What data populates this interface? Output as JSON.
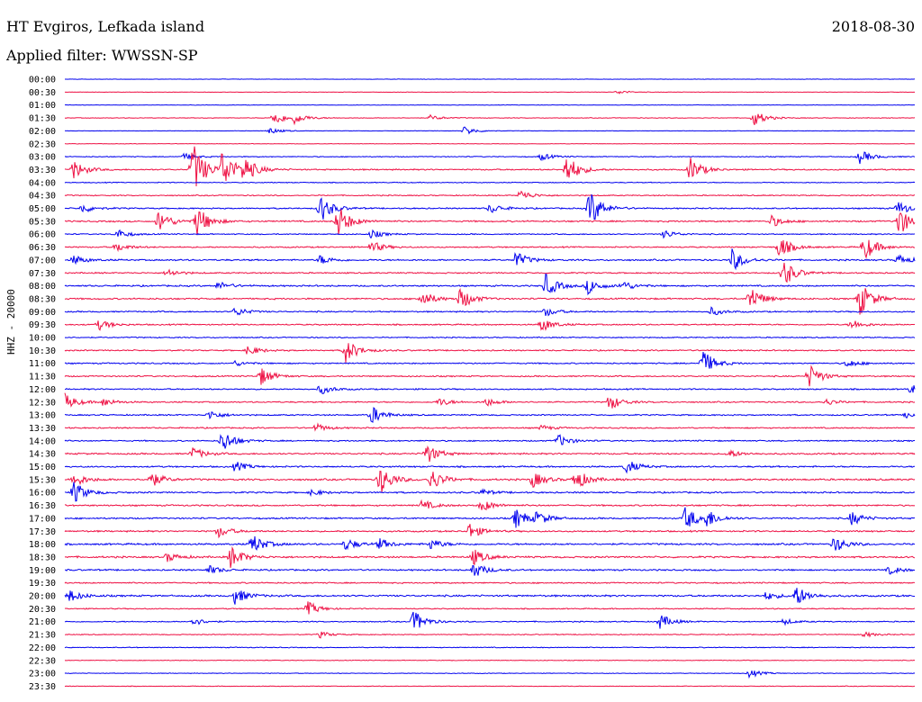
{
  "header": {
    "station": "HT Evgiros, Lefkada island",
    "date": "2018-08-30",
    "filter": "Applied filter: WWSSN-SP"
  },
  "axis": {
    "ylabel": "HHZ - 20000"
  },
  "colors": {
    "odd_trace": "#0000ee",
    "even_trace": "#ee1144",
    "background": "#ffffff"
  },
  "chart_data": {
    "type": "line",
    "title": "HT Evgiros, Lefkada island",
    "subtitle": "Applied filter: WWSSN-SP",
    "ylabel": "HHZ - 20000",
    "row_labels": [
      "00:00",
      "00:30",
      "01:00",
      "01:30",
      "02:00",
      "02:30",
      "03:00",
      "03:30",
      "04:00",
      "04:30",
      "05:00",
      "05:30",
      "06:00",
      "06:30",
      "07:00",
      "07:30",
      "08:00",
      "08:30",
      "09:00",
      "09:30",
      "10:00",
      "10:30",
      "11:00",
      "11:30",
      "12:00",
      "12:30",
      "13:00",
      "13:30",
      "14:00",
      "14:30",
      "15:00",
      "15:30",
      "16:00",
      "16:30",
      "17:00",
      "17:30",
      "18:00",
      "18:30",
      "19:00",
      "19:30",
      "20:00",
      "20:30",
      "21:00",
      "21:30",
      "22:00",
      "22:30",
      "23:00",
      "23:30"
    ],
    "row_colors": [
      "blue",
      "red"
    ],
    "noise_level": [
      0.2,
      0.2,
      0.2,
      0.3,
      0.2,
      0.2,
      0.4,
      0.6,
      0.4,
      0.5,
      0.6,
      0.7,
      0.5,
      0.6,
      0.7,
      0.6,
      0.7,
      0.7,
      0.6,
      0.6,
      0.5,
      0.6,
      0.6,
      0.6,
      0.6,
      0.6,
      0.6,
      0.6,
      0.6,
      0.7,
      0.7,
      0.8,
      0.7,
      0.7,
      0.7,
      0.7,
      0.8,
      0.8,
      0.7,
      0.6,
      0.8,
      0.5,
      0.5,
      0.4,
      0.4,
      0.3,
      0.3,
      0.3
    ],
    "events": [
      {
        "row": 1,
        "t": 0.65,
        "amp": 0.4
      },
      {
        "row": 3,
        "t": 0.245,
        "amp": 1.5
      },
      {
        "row": 3,
        "t": 0.27,
        "amp": 1.0
      },
      {
        "row": 3,
        "t": 0.81,
        "amp": 1.6
      },
      {
        "row": 3,
        "t": 0.43,
        "amp": 0.5
      },
      {
        "row": 4,
        "t": 0.24,
        "amp": 0.6
      },
      {
        "row": 4,
        "t": 0.47,
        "amp": 0.9
      },
      {
        "row": 6,
        "t": 0.14,
        "amp": 0.6
      },
      {
        "row": 6,
        "t": 0.56,
        "amp": 0.7
      },
      {
        "row": 6,
        "t": 0.935,
        "amp": 1.3
      },
      {
        "row": 7,
        "t": 0.01,
        "amp": 1.8
      },
      {
        "row": 7,
        "t": 0.15,
        "amp": 5.5
      },
      {
        "row": 7,
        "t": 0.185,
        "amp": 4.0
      },
      {
        "row": 7,
        "t": 0.21,
        "amp": 2.4
      },
      {
        "row": 7,
        "t": 0.59,
        "amp": 3.0
      },
      {
        "row": 7,
        "t": 0.735,
        "amp": 2.4
      },
      {
        "row": 9,
        "t": 0.535,
        "amp": 1.1
      },
      {
        "row": 10,
        "t": 0.02,
        "amp": 0.9
      },
      {
        "row": 10,
        "t": 0.3,
        "amp": 2.8
      },
      {
        "row": 10,
        "t": 0.5,
        "amp": 1.0
      },
      {
        "row": 10,
        "t": 0.617,
        "amp": 3.8
      },
      {
        "row": 10,
        "t": 0.98,
        "amp": 1.4
      },
      {
        "row": 11,
        "t": 0.11,
        "amp": 2.2
      },
      {
        "row": 11,
        "t": 0.155,
        "amp": 3.0
      },
      {
        "row": 11,
        "t": 0.32,
        "amp": 3.4
      },
      {
        "row": 11,
        "t": 0.83,
        "amp": 1.2
      },
      {
        "row": 11,
        "t": 0.98,
        "amp": 3.0
      },
      {
        "row": 12,
        "t": 0.06,
        "amp": 1.0
      },
      {
        "row": 12,
        "t": 0.36,
        "amp": 0.8
      },
      {
        "row": 12,
        "t": 0.705,
        "amp": 0.8
      },
      {
        "row": 13,
        "t": 0.06,
        "amp": 0.9
      },
      {
        "row": 13,
        "t": 0.36,
        "amp": 1.2
      },
      {
        "row": 13,
        "t": 0.84,
        "amp": 2.2
      },
      {
        "row": 13,
        "t": 0.94,
        "amp": 2.6
      },
      {
        "row": 14,
        "t": 0.01,
        "amp": 0.9
      },
      {
        "row": 14,
        "t": 0.3,
        "amp": 0.9
      },
      {
        "row": 14,
        "t": 0.53,
        "amp": 1.6
      },
      {
        "row": 14,
        "t": 0.785,
        "amp": 2.2
      },
      {
        "row": 14,
        "t": 0.98,
        "amp": 1.0
      },
      {
        "row": 15,
        "t": 0.12,
        "amp": 0.8
      },
      {
        "row": 15,
        "t": 0.845,
        "amp": 2.8
      },
      {
        "row": 16,
        "t": 0.18,
        "amp": 0.8
      },
      {
        "row": 16,
        "t": 0.565,
        "amp": 2.3
      },
      {
        "row": 16,
        "t": 0.615,
        "amp": 1.5
      },
      {
        "row": 16,
        "t": 0.655,
        "amp": 1.0
      },
      {
        "row": 17,
        "t": 0.42,
        "amp": 1.6
      },
      {
        "row": 17,
        "t": 0.465,
        "amp": 2.2
      },
      {
        "row": 17,
        "t": 0.805,
        "amp": 2.6
      },
      {
        "row": 17,
        "t": 0.935,
        "amp": 3.4
      },
      {
        "row": 18,
        "t": 0.2,
        "amp": 0.9
      },
      {
        "row": 18,
        "t": 0.565,
        "amp": 0.9
      },
      {
        "row": 18,
        "t": 0.76,
        "amp": 0.8
      },
      {
        "row": 19,
        "t": 0.04,
        "amp": 1.0
      },
      {
        "row": 19,
        "t": 0.56,
        "amp": 1.4
      },
      {
        "row": 19,
        "t": 0.925,
        "amp": 1.0
      },
      {
        "row": 21,
        "t": 0.215,
        "amp": 1.0
      },
      {
        "row": 21,
        "t": 0.33,
        "amp": 2.4
      },
      {
        "row": 22,
        "t": 0.2,
        "amp": 0.5
      },
      {
        "row": 22,
        "t": 0.75,
        "amp": 2.6
      },
      {
        "row": 22,
        "t": 0.92,
        "amp": 0.8
      },
      {
        "row": 23,
        "t": 0.23,
        "amp": 1.8
      },
      {
        "row": 23,
        "t": 0.875,
        "amp": 2.4
      },
      {
        "row": 24,
        "t": 0.3,
        "amp": 1.0
      },
      {
        "row": 24,
        "t": 0.995,
        "amp": 1.0
      },
      {
        "row": 25,
        "t": 0.0,
        "amp": 1.6
      },
      {
        "row": 25,
        "t": 0.045,
        "amp": 0.8
      },
      {
        "row": 25,
        "t": 0.44,
        "amp": 0.8
      },
      {
        "row": 25,
        "t": 0.495,
        "amp": 0.8
      },
      {
        "row": 25,
        "t": 0.64,
        "amp": 1.6
      },
      {
        "row": 25,
        "t": 0.895,
        "amp": 0.6
      },
      {
        "row": 26,
        "t": 0.17,
        "amp": 0.9
      },
      {
        "row": 26,
        "t": 0.36,
        "amp": 1.8
      },
      {
        "row": 26,
        "t": 0.99,
        "amp": 0.6
      },
      {
        "row": 27,
        "t": 0.295,
        "amp": 0.8
      },
      {
        "row": 27,
        "t": 0.56,
        "amp": 0.5
      },
      {
        "row": 28,
        "t": 0.185,
        "amp": 2.4
      },
      {
        "row": 28,
        "t": 0.58,
        "amp": 1.2
      },
      {
        "row": 29,
        "t": 0.15,
        "amp": 1.2
      },
      {
        "row": 29,
        "t": 0.425,
        "amp": 2.0
      },
      {
        "row": 29,
        "t": 0.78,
        "amp": 0.8
      },
      {
        "row": 30,
        "t": 0.2,
        "amp": 1.0
      },
      {
        "row": 30,
        "t": 0.66,
        "amp": 1.4
      },
      {
        "row": 31,
        "t": 0.01,
        "amp": 1.4
      },
      {
        "row": 31,
        "t": 0.1,
        "amp": 1.6
      },
      {
        "row": 31,
        "t": 0.37,
        "amp": 3.0
      },
      {
        "row": 31,
        "t": 0.43,
        "amp": 2.2
      },
      {
        "row": 31,
        "t": 0.55,
        "amp": 1.6
      },
      {
        "row": 31,
        "t": 0.6,
        "amp": 2.2
      },
      {
        "row": 32,
        "t": 0.01,
        "amp": 2.2
      },
      {
        "row": 32,
        "t": 0.29,
        "amp": 0.6
      },
      {
        "row": 32,
        "t": 0.49,
        "amp": 0.6
      },
      {
        "row": 33,
        "t": 0.42,
        "amp": 1.0
      },
      {
        "row": 33,
        "t": 0.49,
        "amp": 1.2
      },
      {
        "row": 34,
        "t": 0.53,
        "amp": 2.0
      },
      {
        "row": 34,
        "t": 0.555,
        "amp": 1.2
      },
      {
        "row": 34,
        "t": 0.73,
        "amp": 2.4
      },
      {
        "row": 34,
        "t": 0.755,
        "amp": 1.6
      },
      {
        "row": 34,
        "t": 0.925,
        "amp": 1.4
      },
      {
        "row": 35,
        "t": 0.18,
        "amp": 1.2
      },
      {
        "row": 35,
        "t": 0.475,
        "amp": 1.6
      },
      {
        "row": 36,
        "t": 0.22,
        "amp": 2.0
      },
      {
        "row": 36,
        "t": 0.33,
        "amp": 1.2
      },
      {
        "row": 36,
        "t": 0.37,
        "amp": 1.0
      },
      {
        "row": 36,
        "t": 0.43,
        "amp": 1.0
      },
      {
        "row": 36,
        "t": 0.905,
        "amp": 1.6
      },
      {
        "row": 37,
        "t": 0.12,
        "amp": 0.9
      },
      {
        "row": 37,
        "t": 0.195,
        "amp": 2.2
      },
      {
        "row": 37,
        "t": 0.48,
        "amp": 1.6
      },
      {
        "row": 38,
        "t": 0.17,
        "amp": 0.8
      },
      {
        "row": 38,
        "t": 0.48,
        "amp": 1.6
      },
      {
        "row": 38,
        "t": 0.97,
        "amp": 0.8
      },
      {
        "row": 40,
        "t": 0.005,
        "amp": 1.2
      },
      {
        "row": 40,
        "t": 0.2,
        "amp": 1.6
      },
      {
        "row": 40,
        "t": 0.825,
        "amp": 0.8
      },
      {
        "row": 40,
        "t": 0.86,
        "amp": 2.0
      },
      {
        "row": 41,
        "t": 0.285,
        "amp": 1.4
      },
      {
        "row": 42,
        "t": 0.15,
        "amp": 0.8
      },
      {
        "row": 42,
        "t": 0.41,
        "amp": 2.2
      },
      {
        "row": 42,
        "t": 0.7,
        "amp": 1.4
      },
      {
        "row": 42,
        "t": 0.845,
        "amp": 0.6
      },
      {
        "row": 43,
        "t": 0.3,
        "amp": 0.6
      },
      {
        "row": 43,
        "t": 0.94,
        "amp": 0.5
      },
      {
        "row": 46,
        "t": 0.805,
        "amp": 0.8
      }
    ]
  }
}
